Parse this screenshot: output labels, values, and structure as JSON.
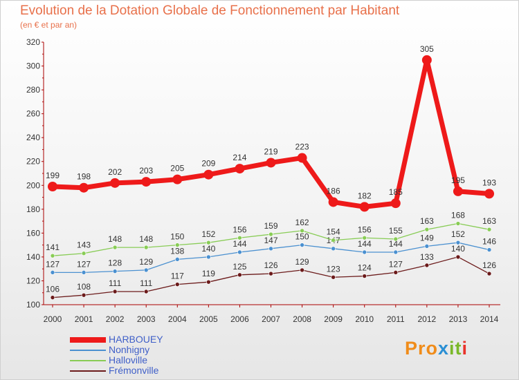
{
  "title": "Evolution de la Dotation Globale de Fonctionnement par Habitant",
  "subtitle": "(en € et par an)",
  "logo": {
    "p1": "Pro",
    "p2": "x",
    "p3": "it",
    "p4": "i"
  },
  "colors": {
    "HARBOUEY": "#ee1a1a",
    "Nonhigny": "#4a90d0",
    "Halloville": "#88cc55",
    "Frémonville": "#6b1a1a",
    "axis": "#aa0000",
    "label": "#333333"
  },
  "chart_data": {
    "type": "line",
    "title": "Evolution de la Dotation Globale de Fonctionnement par Habitant",
    "subtitle": "(en € et par an)",
    "xlabel": "",
    "ylabel": "",
    "ylim": [
      100,
      320
    ],
    "yticks": [
      100,
      120,
      140,
      160,
      180,
      200,
      220,
      240,
      260,
      280,
      300,
      320
    ],
    "grid": false,
    "legend_position": "bottom-left",
    "x": [
      "2000",
      "2001",
      "2002",
      "2003",
      "2004",
      "2005",
      "2006",
      "2007",
      "2008",
      "2009",
      "2010",
      "2011",
      "2012",
      "2013",
      "2014"
    ],
    "series": [
      {
        "name": "HARBOUEY",
        "values": [
          199,
          198,
          202,
          203,
          205,
          209,
          214,
          219,
          223,
          186,
          182,
          185,
          305,
          195,
          193
        ]
      },
      {
        "name": "Nonhigny",
        "values": [
          127,
          127,
          128,
          129,
          138,
          140,
          144,
          147,
          150,
          147,
          144,
          144,
          149,
          152,
          146
        ]
      },
      {
        "name": "Halloville",
        "values": [
          141,
          143,
          148,
          148,
          150,
          152,
          156,
          159,
          162,
          154,
          156,
          155,
          163,
          168,
          163
        ]
      },
      {
        "name": "Frémonville",
        "values": [
          106,
          108,
          111,
          111,
          117,
          119,
          125,
          126,
          129,
          123,
          124,
          127,
          133,
          140,
          126
        ]
      }
    ]
  }
}
